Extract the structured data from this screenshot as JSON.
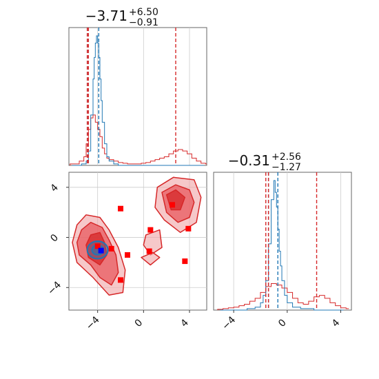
{
  "chart_data": [
    {
      "type": "histogram",
      "panel": "top-left marginal (parameter 1)",
      "title_main": "−3.71",
      "title_sup": "+6.50",
      "title_sub": "−0.91",
      "xlim": [
        -6.5,
        5.5
      ],
      "grid": true,
      "series": [
        {
          "color": "#1f77b4",
          "x": [
            -6.2,
            -5.8,
            -5.4,
            -5.0,
            -4.8,
            -4.6,
            -4.4,
            -4.3,
            -4.2,
            -4.1,
            -4.0,
            -3.9,
            -3.8,
            -3.7,
            -3.6,
            -3.4,
            -3.2,
            -3.0,
            -2.6,
            -2.2,
            -1.8,
            -1.0,
            0,
            1,
            2,
            3,
            4,
            5
          ],
          "y": [
            0,
            0,
            0.01,
            0.03,
            0.1,
            0.35,
            0.6,
            0.75,
            0.85,
            0.9,
            0.85,
            0.75,
            0.6,
            0.45,
            0.3,
            0.15,
            0.06,
            0.03,
            0.01,
            0,
            0,
            0,
            0,
            0,
            0,
            0,
            0,
            0
          ],
          "quantile_lines": [
            -4.9,
            -3.9
          ]
        },
        {
          "color": "#d62728",
          "x": [
            -6.4,
            -6.0,
            -5.6,
            -5.2,
            -5.0,
            -4.8,
            -4.6,
            -4.4,
            -4.2,
            -4.0,
            -3.8,
            -3.6,
            -3.4,
            -3.2,
            -3.0,
            -2.6,
            -2.2,
            -1.8,
            -1.4,
            -1.0,
            -0.6,
            -0.2,
            0.2,
            0.6,
            1.0,
            1.4,
            1.8,
            2.2,
            2.6,
            3.0,
            3.4,
            3.8,
            4.2,
            4.6,
            5.0,
            5.4
          ],
          "y": [
            0.01,
            0.01,
            0.03,
            0.06,
            0.15,
            0.25,
            0.33,
            0.35,
            0.3,
            0.25,
            0.2,
            0.12,
            0.08,
            0.05,
            0.04,
            0.03,
            0.02,
            0.015,
            0.01,
            0.01,
            0.01,
            0.015,
            0.02,
            0.03,
            0.04,
            0.05,
            0.06,
            0.08,
            0.1,
            0.11,
            0.1,
            0.08,
            0.05,
            0.03,
            0.015,
            0.01
          ],
          "quantile_lines": [
            -4.9,
            -4.8,
            2.8
          ]
        }
      ]
    },
    {
      "type": "contour",
      "panel": "bottom-left 2D (parameter 1 vs parameter 2)",
      "xlim": [
        -6.5,
        5.5
      ],
      "ylim": [
        -5.8,
        5.2
      ],
      "x_ticks": [
        -4,
        0,
        4
      ],
      "y_ticks": [
        -4,
        0,
        4
      ],
      "x_tick_labels": [
        "−4",
        "0",
        "4"
      ],
      "y_tick_labels": [
        "−4",
        "0",
        "4"
      ],
      "grid": true,
      "red_contour_levels": [
        {
          "shade": "light",
          "regions": [
            [
              [
                -5.8,
                1.0
              ],
              [
                -5.0,
                1.8
              ],
              [
                -3.8,
                1.6
              ],
              [
                -3.0,
                0.6
              ],
              [
                -2.2,
                -0.8
              ],
              [
                -1.6,
                -2.6
              ],
              [
                -1.8,
                -4.4
              ],
              [
                -3.0,
                -4.6
              ],
              [
                -4.4,
                -3.2
              ],
              [
                -5.8,
                -2.0
              ],
              [
                -6.2,
                -0.4
              ]
            ],
            [
              [
                1.2,
                4.0
              ],
              [
                2.6,
                4.8
              ],
              [
                4.4,
                4.6
              ],
              [
                5.0,
                3.2
              ],
              [
                4.6,
                1.2
              ],
              [
                3.2,
                0.4
              ],
              [
                1.8,
                1.4
              ],
              [
                1.0,
                2.4
              ]
            ],
            [
              [
                0.2,
                0.2
              ],
              [
                1.4,
                0.6
              ],
              [
                1.6,
                -0.8
              ],
              [
                0.6,
                -1.4
              ],
              [
                0.0,
                -0.6
              ]
            ],
            [
              [
                -0.2,
                -1.6
              ],
              [
                0.8,
                -1.2
              ],
              [
                1.4,
                -1.6
              ],
              [
                0.6,
                -2.2
              ]
            ]
          ]
        },
        {
          "shade": "medium",
          "regions": [
            [
              [
                -5.4,
                0.6
              ],
              [
                -4.6,
                1.2
              ],
              [
                -3.6,
                0.8
              ],
              [
                -3.0,
                -0.2
              ],
              [
                -2.4,
                -1.4
              ],
              [
                -2.2,
                -2.8
              ],
              [
                -2.8,
                -3.8
              ],
              [
                -3.8,
                -3.2
              ],
              [
                -4.6,
                -2.2
              ],
              [
                -5.6,
                -1.4
              ],
              [
                -5.8,
                -0.4
              ]
            ],
            [
              [
                1.6,
                3.6
              ],
              [
                2.8,
                4.2
              ],
              [
                4.0,
                3.8
              ],
              [
                4.4,
                2.8
              ],
              [
                4.0,
                1.6
              ],
              [
                3.0,
                1.2
              ],
              [
                2.0,
                2.0
              ]
            ]
          ]
        },
        {
          "shade": "dark",
          "regions": [
            [
              [
                -4.6,
                0.2
              ],
              [
                -3.8,
                0.4
              ],
              [
                -3.4,
                -0.4
              ],
              [
                -3.2,
                -1.4
              ],
              [
                -3.8,
                -2.2
              ],
              [
                -4.8,
                -1.6
              ],
              [
                -5.0,
                -0.6
              ]
            ],
            [
              [
                2.0,
                3.4
              ],
              [
                2.8,
                3.8
              ],
              [
                3.6,
                3.2
              ],
              [
                3.2,
                2.2
              ],
              [
                2.4,
                2.2
              ]
            ]
          ]
        }
      ],
      "blue_contour": {
        "center": [
          -4.0,
          -1.0
        ],
        "rx": 0.9,
        "ry": 0.7
      },
      "red_markers": [
        [
          -2.0,
          2.3
        ],
        [
          2.5,
          2.6
        ],
        [
          0.6,
          0.6
        ],
        [
          3.9,
          0.7
        ],
        [
          -4.0,
          -0.7
        ],
        [
          -2.8,
          -0.9
        ],
        [
          -1.4,
          -1.4
        ],
        [
          0.5,
          -1.1
        ],
        [
          3.6,
          -1.9
        ],
        [
          -2.0,
          -3.4
        ]
      ],
      "blue_marker": [
        -3.7,
        -1.05
      ]
    },
    {
      "type": "histogram",
      "panel": "bottom-right marginal (parameter 2)",
      "title_main": "−0.31",
      "title_sup": "+2.56",
      "title_sub": "−1.27",
      "xlim": [
        -5.5,
        4.8
      ],
      "x_ticks": [
        -4,
        0,
        4
      ],
      "x_tick_labels": [
        "−4",
        "0",
        "4"
      ],
      "grid": true,
      "series": [
        {
          "color": "#1f77b4",
          "x": [
            -5.0,
            -4.0,
            -3.0,
            -2.4,
            -2.0,
            -1.8,
            -1.6,
            -1.4,
            -1.2,
            -1.0,
            -0.9,
            -0.8,
            -0.7,
            -0.6,
            -0.5,
            -0.4,
            -0.2,
            0,
            0.4,
            1,
            2,
            3,
            4
          ],
          "y": [
            0,
            0,
            0.01,
            0.02,
            0.05,
            0.1,
            0.2,
            0.45,
            0.75,
            0.88,
            0.8,
            0.7,
            0.55,
            0.4,
            0.3,
            0.2,
            0.1,
            0.05,
            0.02,
            0.01,
            0,
            0,
            0
          ],
          "quantile_lines": [
            -1.4,
            -0.7
          ]
        },
        {
          "color": "#d62728",
          "x": [
            -5.2,
            -4.8,
            -4.4,
            -4.0,
            -3.6,
            -3.2,
            -2.8,
            -2.4,
            -2.0,
            -1.6,
            -1.2,
            -0.8,
            -0.4,
            0,
            0.4,
            0.8,
            1.2,
            1.6,
            2.0,
            2.4,
            2.8,
            3.2,
            3.6,
            4.0,
            4.4
          ],
          "y": [
            0.005,
            0.01,
            0.015,
            0.02,
            0.03,
            0.04,
            0.06,
            0.08,
            0.12,
            0.16,
            0.18,
            0.17,
            0.15,
            0.12,
            0.08,
            0.05,
            0.04,
            0.06,
            0.09,
            0.1,
            0.08,
            0.05,
            0.03,
            0.015,
            0.01
          ],
          "quantile_lines": [
            -1.6,
            -1.4,
            2.2
          ]
        }
      ]
    }
  ]
}
